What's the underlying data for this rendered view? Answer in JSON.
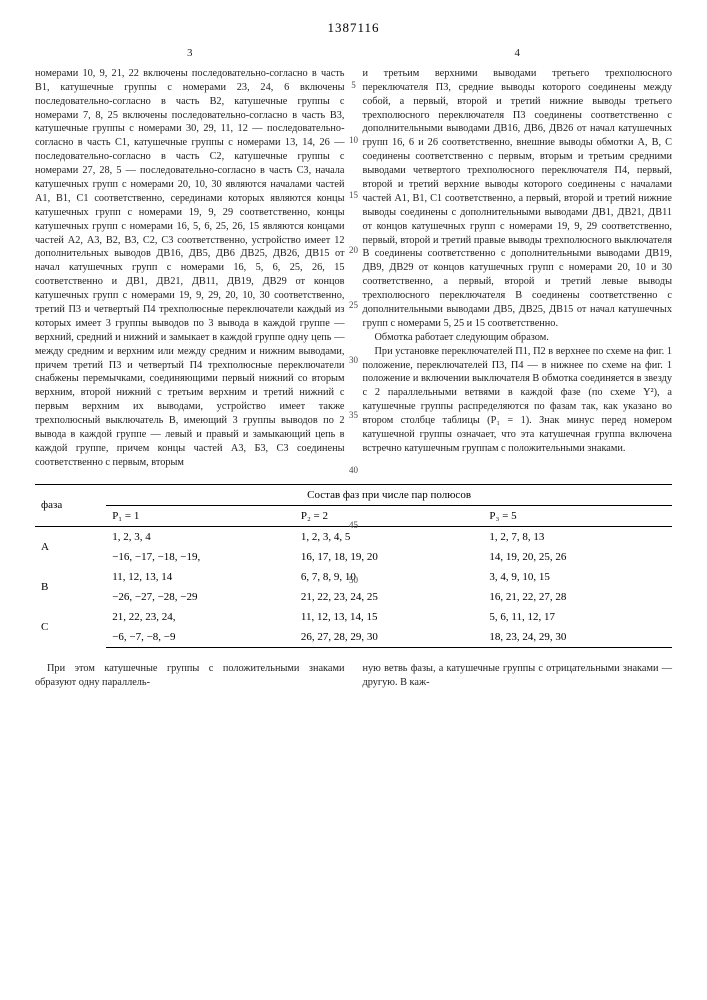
{
  "doc_number": "1387116",
  "col_left_num": "3",
  "col_right_num": "4",
  "line_marks": [
    "5",
    "10",
    "15",
    "20",
    "25",
    "30",
    "35",
    "40",
    "45",
    "50"
  ],
  "col_left_text": "номерами 10, 9, 21, 22 включены последовательно-согласно в часть В1, катушечные группы с номерами 23, 24, 6 включены последовательно-согласно в часть В2, катушечные группы с номерами 7, 8, 25 включены последовательно-согласно в часть В3, катушечные группы с номерами 30, 29, 11, 12 — последовательно-согласно в часть С1, катушечные группы с номерами 13, 14, 26 — последовательно-согласно в часть С2, катушечные группы с номерами 27, 28, 5 — последовательно-согласно в часть С3, начала катушечных групп с номерами 20, 10, 30 являются началами частей А1, В1, С1 соответственно, серединами которых являются концы катушечных групп с номерами 19, 9, 29 соответственно, концы катушечных групп с номерами 16, 5, 6, 25, 26, 15 являются концами частей А2, А3, В2, В3, С2, С3 соответственно, устройство имеет 12 дополнительных выводов ДВ16, ДВ5, ДВ6 ДВ25, ДВ26, ДВ15 от начал катушечных групп с номерами 16, 5, 6, 25, 26, 15 соответственно и ДВ1, ДВ21, ДВ11, ДВ19, ДВ29 от концов катушечных групп с номерами 19, 9, 29, 20, 10, 30 соответственно, третий П3 и четвертый П4 трехполюсные переключатели каждый из которых имеет 3 группы выводов по 3 вывода в каждой группе — верхний, средний и нижний и замыкает в каждой группе одну цепь — между средним и верхним или между средним и нижним выводами, причем третий П3 и четвертый П4 трехполюсные переключатели снабжены перемычками, соединяющими первый нижний со вторым верхним, второй нижний с третьим верхним и третий нижний с первым верхним их выводами, устройство имеет также трехполюсный выключатель В, имеющий 3 группы выводов по 2 вывода в каждой группе — левый и правый и замыкающий цепь в каждой группе, причем концы частей А3, Б3, С3 соединены соответственно с первым, вторым",
  "col_right_text_p1": "и третьим верхними выводами третьего трехполюсного переключателя П3, средние выводы которого соединены между собой, а первый, второй и третий нижние выводы третьего трехполюсного переключателя П3 соединены соответственно с дополнительными выводами ДВ16, ДВ6, ДВ26 от начал катушечных групп 16, 6 и 26 соответственно, внешние выводы обмотки А, В, С соединены соответственно с первым, вторым и третьим средними выводами четвертого трехполюсного переключателя П4, первый, второй и третий верхние выводы которого соединены с началами частей А1, В1, С1 соответственно, а первый, второй и третий нижние выводы соединены с дополнительными выводами ДВ1, ДВ21, ДВ11 от концов катушечных групп с номерами 19, 9, 29 соответственно, первый, второй и третий правые выводы трехполюсного выключателя В соединены соответственно с дополнительными выводами ДВ19, ДВ9, ДВ29 от концов катушечных групп с номерами 20, 10 и 30 соответственно, а первый, второй и третий левые выводы трехполюсного переключателя В соединены соответственно с дополнительными выводами ДВ5, ДВ25, ДВ15 от начал катушечных групп с номерами 5, 25 и 15 соответственно.",
  "col_right_text_p2": "Обмотка работает следующим образом.",
  "col_right_text_p3": "При установке переключателей П1, П2 в верхнее по схеме на фиг. 1 положение, переключателей П3, П4 — в нижнее по схеме на фиг. 1 положение и включении выключателя В обмотка соединяется в звезду с 2 параллельными ветвями в каждой фазе (по схеме Y²), а катушечные группы распределяются по фазам так, как указано во втором столбце таблицы (P₁ = 1). Знак минус перед номером катушечной группы означает, что эта катушечная группа включена встречно катушечным группам с положительными знаками.",
  "table": {
    "header_phase": "фаза",
    "header_main": "Состав фаз при числе пар полюсов",
    "sub_headers": [
      "P₁ = 1",
      "P₂ = 2",
      "P₃ = 5"
    ],
    "rows": [
      {
        "phase": "A",
        "c1a": "1, 2, 3, 4",
        "c1b": "−16, −17, −18, −19,",
        "c2a": "1, 2, 3, 4, 5",
        "c2b": "16, 17, 18, 19, 20",
        "c3a": "1, 2, 7, 8, 13",
        "c3b": "14, 19, 20, 25, 26"
      },
      {
        "phase": "B",
        "c1a": "11, 12, 13, 14",
        "c1b": "−26, −27, −28, −29",
        "c2a": "6, 7, 8, 9, 10",
        "c2b": "21, 22, 23, 24, 25",
        "c3a": "3, 4, 9, 10, 15",
        "c3b": "16, 21, 22, 27, 28"
      },
      {
        "phase": "C",
        "c1a": "21, 22, 23, 24,",
        "c1b": "−6, −7, −8, −9",
        "c2a": "11, 12, 13, 14, 15",
        "c2b": "26, 27, 28, 29, 30",
        "c3a": "5, 6, 11, 12, 17",
        "c3b": "18, 23, 24, 29, 30"
      }
    ]
  },
  "bottom_left": "При этом катушечные группы с положительными знаками образуют одну параллель-",
  "bottom_right": "ную ветвь фазы, а катушечные группы с отрицательными знаками — другую. В каж-"
}
